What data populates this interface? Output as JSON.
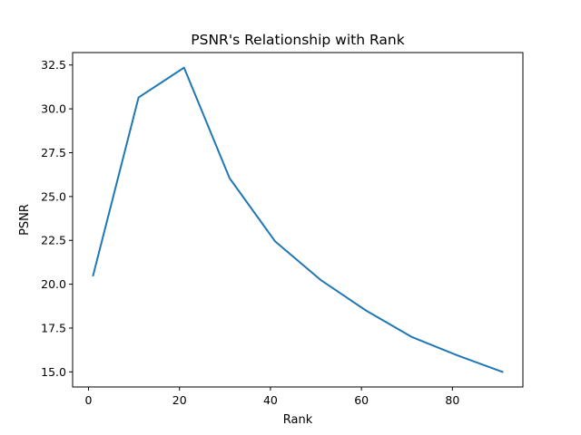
{
  "chart_data": {
    "type": "line",
    "title": "PSNR's Relationship with Rank",
    "xlabel": "Rank",
    "ylabel": "PSNR",
    "x": [
      1,
      11,
      21,
      31,
      41,
      51,
      61,
      71,
      81,
      91
    ],
    "series": [
      {
        "values": [
          20.5,
          30.65,
          32.35,
          26.05,
          22.45,
          20.25,
          18.5,
          17.0,
          15.95,
          15.0
        ],
        "color": "#1f77b4"
      }
    ],
    "xlim": [
      -3.5,
      95.5
    ],
    "ylim": [
      14.14,
      33.21
    ],
    "xticks": [
      0,
      20,
      40,
      60,
      80
    ],
    "xtick_labels": [
      "0",
      "20",
      "40",
      "60",
      "80"
    ],
    "yticks": [
      15.0,
      17.5,
      20.0,
      22.5,
      25.0,
      27.5,
      30.0,
      32.5
    ],
    "ytick_labels": [
      "15.0",
      "17.5",
      "20.0",
      "22.5",
      "25.0",
      "27.5",
      "30.0",
      "32.5"
    ],
    "grid": false,
    "legend": "none"
  }
}
